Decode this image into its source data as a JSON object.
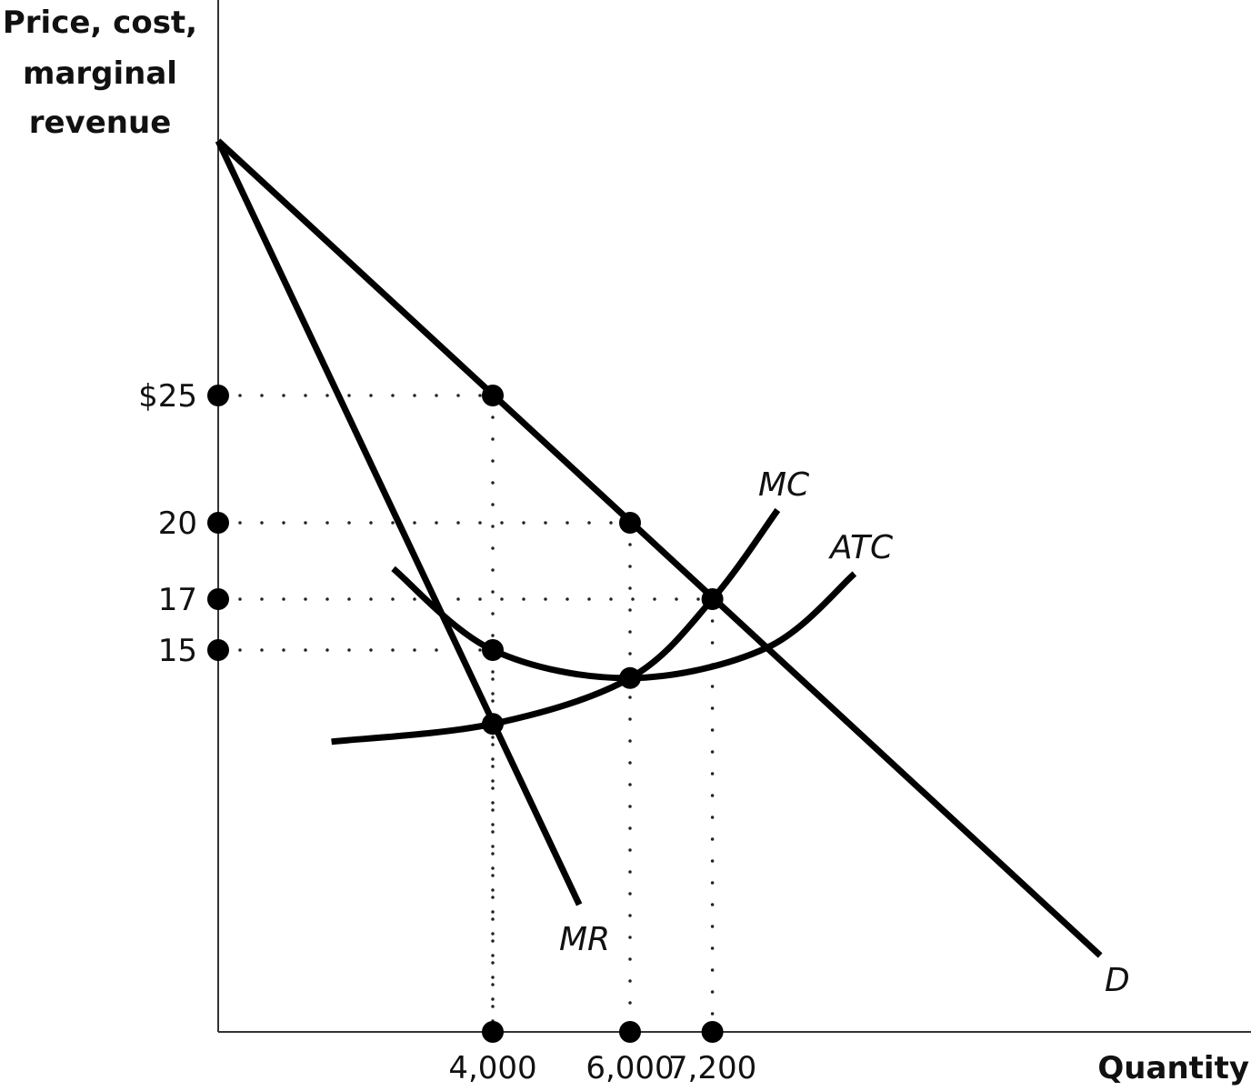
{
  "chart_data": {
    "type": "line",
    "ylabel_lines": [
      "Price, cost,",
      "marginal",
      "revenue"
    ],
    "xlabel": "Quantity",
    "ylim": [
      0,
      35
    ],
    "xlim": [
      0,
      14900
    ],
    "grid": false,
    "y_ticks": [
      {
        "value": 25,
        "label": "$25"
      },
      {
        "value": 20,
        "label": "20"
      },
      {
        "value": 17,
        "label": "17"
      },
      {
        "value": 15,
        "label": "15"
      }
    ],
    "x_ticks": [
      {
        "value": 4000,
        "label": "4,000"
      },
      {
        "value": 6000,
        "label": "6,000"
      },
      {
        "value": 7200,
        "label": "7,200"
      }
    ],
    "series": [
      {
        "name": "D",
        "kind": "straight",
        "points": [
          [
            0,
            35
          ],
          [
            12850,
            3
          ]
        ]
      },
      {
        "name": "MR",
        "kind": "straight",
        "points": [
          [
            0,
            35
          ],
          [
            5260,
            5
          ]
        ]
      },
      {
        "name": "MC",
        "kind": "curve",
        "points": [
          [
            1650,
            11.4
          ],
          [
            4000,
            12.1
          ],
          [
            6000,
            13.9
          ],
          [
            7200,
            17
          ],
          [
            8150,
            20.5
          ]
        ]
      },
      {
        "name": "ATC",
        "kind": "curve",
        "points": [
          [
            2550,
            18.2
          ],
          [
            4000,
            15
          ],
          [
            6000,
            13.9
          ],
          [
            8000,
            15.1
          ],
          [
            9270,
            18
          ]
        ]
      }
    ],
    "highlight_points": [
      [
        4000,
        25
      ],
      [
        6000,
        20
      ],
      [
        7200,
        17
      ],
      [
        4000,
        15
      ],
      [
        6000,
        13.9
      ],
      [
        4000,
        12.1
      ]
    ],
    "guides": [
      {
        "x": 4000,
        "y": 25
      },
      {
        "x": 6000,
        "y": 20
      },
      {
        "x": 7200,
        "y": 17
      },
      {
        "x": 4000,
        "y": 15
      }
    ]
  }
}
